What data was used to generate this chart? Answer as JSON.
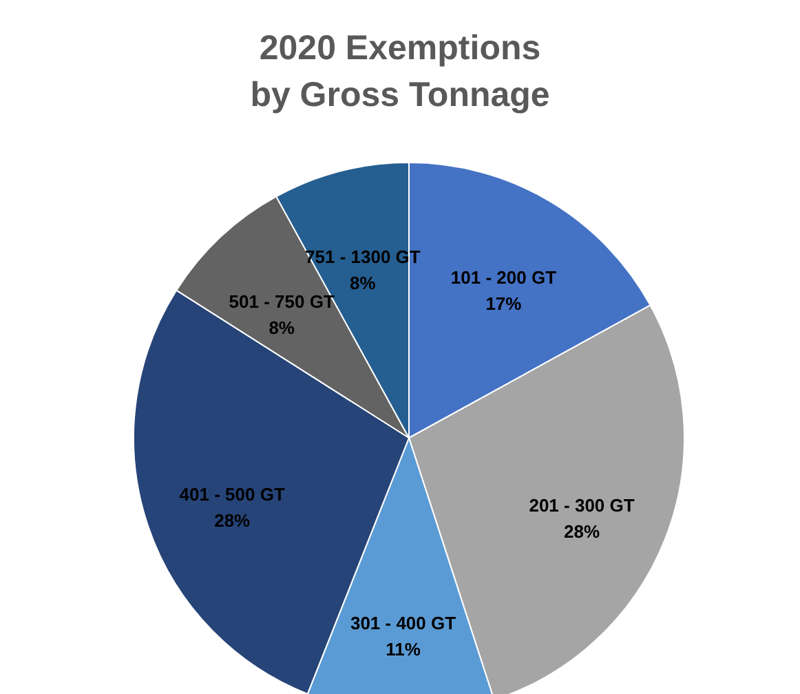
{
  "chart_data": {
    "type": "pie",
    "title": "2020 Exemptions\nby Gross Tonnage",
    "categories": [
      "101 - 200 GT",
      "201 - 300 GT",
      "301 - 400 GT",
      "401 - 500 GT",
      "501 - 750 GT",
      "751 - 1300 GT"
    ],
    "values": [
      17,
      28,
      11,
      28,
      8,
      8
    ],
    "value_labels": [
      "17%",
      "28%",
      "11%",
      "28%",
      "8%",
      "8%"
    ],
    "colors": [
      "#4472c4",
      "#a5a5a5",
      "#5b9bd5",
      "#264478",
      "#636363",
      "#255e91"
    ]
  }
}
